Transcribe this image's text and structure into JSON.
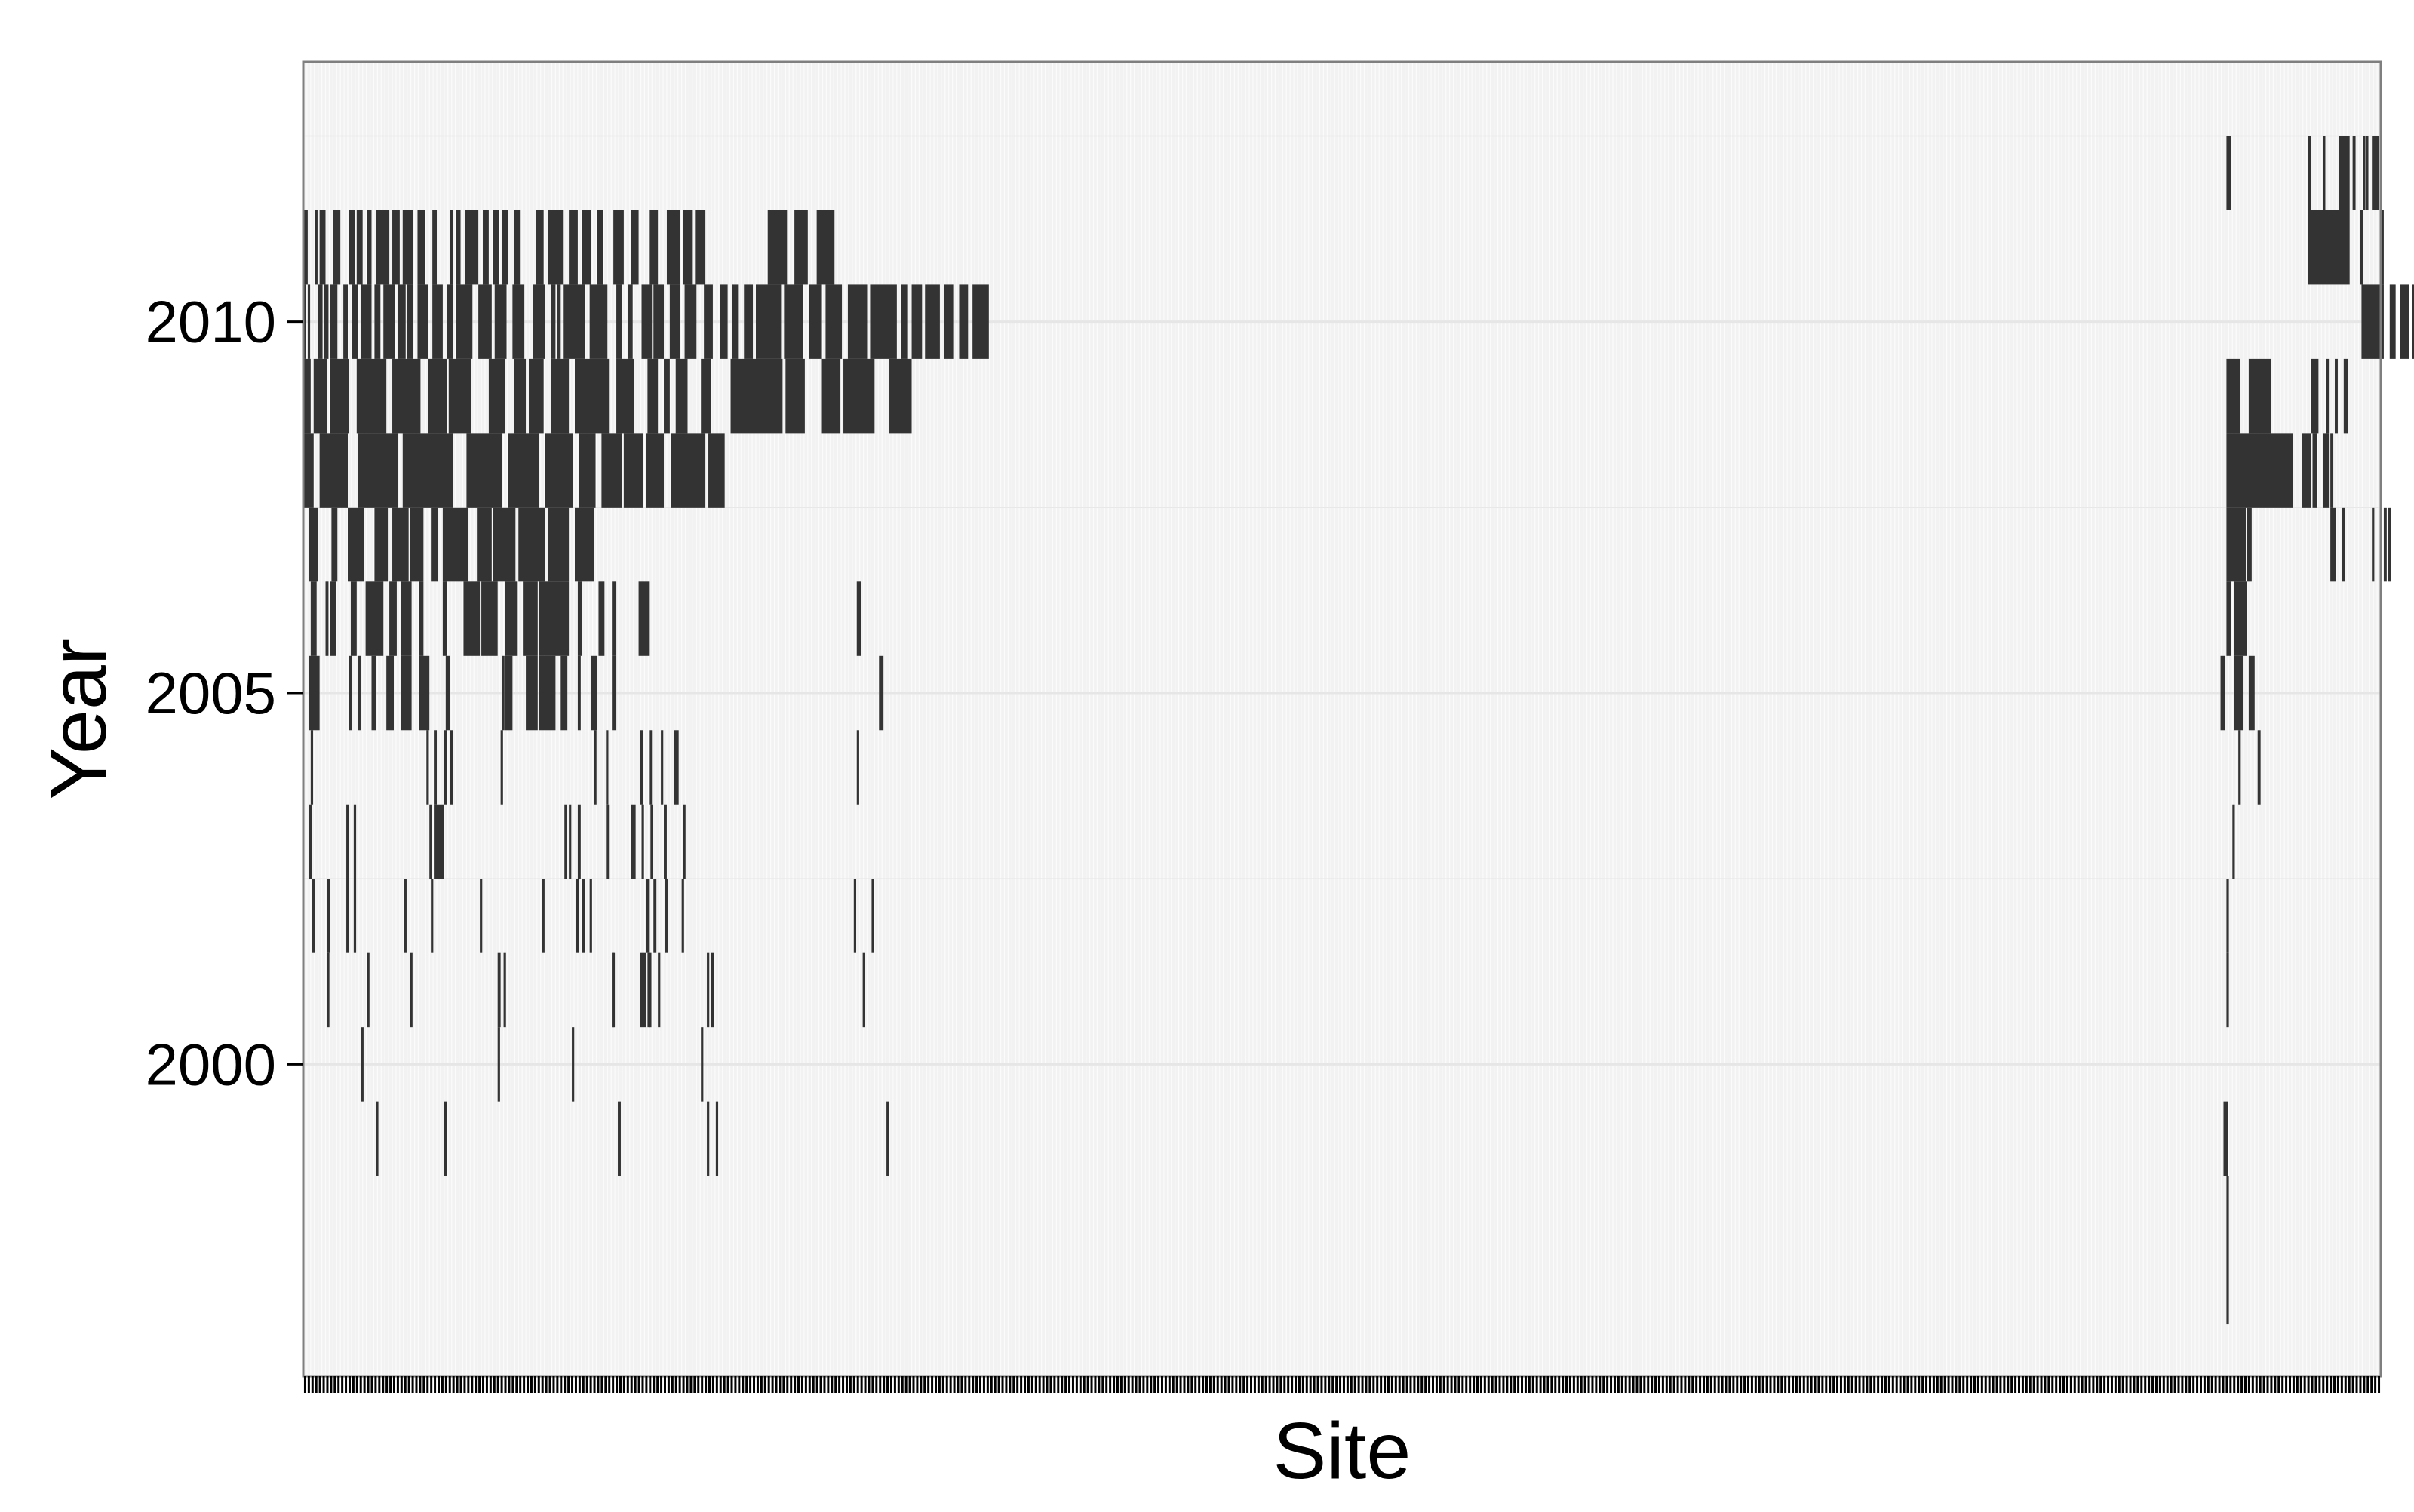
{
  "colors": {
    "panel_background": "#f2f2f2",
    "panel_border": "#7f7f7f",
    "grid": "#e6e6e6",
    "site_grid": "#ffffff",
    "bar": "#333333",
    "axis_text": "#000000",
    "site_axis_ticks": "#000000"
  },
  "chart_data": {
    "type": "heatmap",
    "title": "",
    "xlabel": "Site",
    "ylabel": "Year",
    "ylim": [
      1995.8,
      2013.5
    ],
    "y_ticks": [
      2000,
      2005,
      2010
    ],
    "grid": true,
    "legend": "none",
    "site_count": 560,
    "site_tick_labels_shown": false,
    "series": [
      {
        "year_from": 1997,
        "year_to": 1997,
        "sites": [
          [
            1296,
            1296
          ]
        ]
      },
      {
        "year_from": 1998,
        "year_to": 1998,
        "sites": [
          [
            1296,
            1296
          ]
        ]
      },
      {
        "year_from": 1999,
        "year_to": 1999,
        "sites": [
          [
            49,
            49
          ],
          [
            95,
            95
          ],
          [
            212,
            213
          ],
          [
            272,
            272
          ],
          [
            278,
            278
          ],
          [
            393,
            393
          ],
          [
            1294,
            1296
          ]
        ]
      },
      {
        "year_from": 2000,
        "year_to": 2000,
        "sites": [
          [
            39,
            39
          ],
          [
            131,
            131
          ],
          [
            181,
            181
          ],
          [
            268,
            268
          ]
        ]
      },
      {
        "year_from": 2001,
        "year_to": 2001,
        "sites": [
          [
            16,
            16
          ],
          [
            43,
            43
          ],
          [
            72,
            72
          ],
          [
            131,
            132
          ],
          [
            135,
            135
          ],
          [
            208,
            208
          ],
          [
            208,
            209
          ],
          [
            272,
            272
          ],
          [
            229,
            230
          ],
          [
            232,
            232
          ],
          [
            227,
            228
          ],
          [
            233,
            233
          ],
          [
            239,
            239
          ],
          [
            275,
            276
          ],
          [
            377,
            377
          ],
          [
            1296,
            1296
          ]
        ]
      },
      {
        "year_from": 2002,
        "year_to": 2002,
        "sites": [
          [
            6,
            6
          ],
          [
            16,
            17
          ],
          [
            29,
            29
          ],
          [
            34,
            34
          ],
          [
            68,
            68
          ],
          [
            86,
            86
          ],
          [
            119,
            119
          ],
          [
            161,
            161
          ],
          [
            184,
            184
          ],
          [
            188,
            189
          ],
          [
            193,
            193
          ],
          [
            231,
            232
          ],
          [
            244,
            244
          ],
          [
            236,
            237
          ],
          [
            255,
            255
          ],
          [
            383,
            383
          ],
          [
            371,
            371
          ],
          [
            1296,
            1296
          ]
        ]
      },
      {
        "year_from": 2003,
        "year_to": 2003,
        "sites": [
          [
            4,
            4
          ],
          [
            29,
            29
          ],
          [
            34,
            34
          ],
          [
            85,
            85
          ],
          [
            88,
            94
          ],
          [
            176,
            176
          ],
          [
            179,
            179
          ],
          [
            185,
            186
          ],
          [
            204,
            205
          ],
          [
            221,
            223
          ],
          [
            228,
            228
          ],
          [
            234,
            234
          ],
          [
            243,
            244
          ],
          [
            256,
            256
          ],
          [
            1300,
            1300
          ]
        ]
      },
      {
        "year_from": 2004,
        "year_to": 2004,
        "sites": [
          [
            5,
            5
          ],
          [
            83,
            83
          ],
          [
            88,
            89
          ],
          [
            95,
            96
          ],
          [
            99,
            100
          ],
          [
            133,
            133
          ],
          [
            196,
            196
          ],
          [
            204,
            204
          ],
          [
            227,
            228
          ],
          [
            233,
            234
          ],
          [
            241,
            241
          ],
          [
            250,
            252
          ],
          [
            1304,
            1304
          ],
          [
            373,
            373
          ],
          [
            1317,
            1318
          ]
        ]
      },
      {
        "year_from": 2005,
        "year_to": 2005,
        "sites": [
          [
            4,
            10
          ],
          [
            31,
            32
          ],
          [
            37,
            37
          ],
          [
            46,
            48
          ],
          [
            56,
            60
          ],
          [
            66,
            72
          ],
          [
            78,
            84
          ],
          [
            96,
            98
          ],
          [
            134,
            134
          ],
          [
            136,
            140
          ],
          [
            150,
            157
          ],
          [
            159,
            169
          ],
          [
            173,
            177
          ],
          [
            185,
            186
          ],
          [
            194,
            197
          ],
          [
            208,
            210
          ],
          [
            1301,
            1306
          ],
          [
            1311,
            1314
          ],
          [
            388,
            390
          ],
          [
            1292,
            1294
          ]
        ]
      },
      {
        "year_from": 2006,
        "year_to": 2006,
        "sites": [
          [
            5,
            8
          ],
          [
            15,
            16
          ],
          [
            18,
            21
          ],
          [
            32,
            35
          ],
          [
            42,
            53
          ],
          [
            58,
            62
          ],
          [
            66,
            72
          ],
          [
            78,
            80
          ],
          [
            94,
            96
          ],
          [
            108,
            118
          ],
          [
            120,
            130
          ],
          [
            136,
            143
          ],
          [
            148,
            157
          ],
          [
            159,
            178
          ],
          [
            185,
            187
          ],
          [
            199,
            202
          ],
          [
            208,
            210
          ],
          [
            226,
            232
          ],
          [
            1296,
            1298
          ],
          [
            373,
            375
          ],
          [
            1301,
            1309
          ]
        ]
      },
      {
        "year_from": 2007,
        "year_to": 2007,
        "sites": [
          [
            4,
            9
          ],
          [
            19,
            22
          ],
          [
            30,
            40
          ],
          [
            48,
            56
          ],
          [
            60,
            70
          ],
          [
            72,
            80
          ],
          [
            86,
            90
          ],
          [
            94,
            110
          ],
          [
            117,
            126
          ],
          [
            128,
            142
          ],
          [
            145,
            162
          ],
          [
            165,
            178
          ],
          [
            183,
            195
          ],
          [
            1296,
            1308
          ],
          [
            1310,
            1312
          ],
          [
            1366,
            1369
          ],
          [
            1374,
            1374
          ],
          [
            1394,
            1394
          ],
          [
            1402,
            1403
          ],
          [
            1405,
            1406
          ]
        ]
      },
      {
        "year_from": 2008,
        "year_to": 2008,
        "sites": [
          [
            0,
            6
          ],
          [
            11,
            29
          ],
          [
            37,
            63
          ],
          [
            67,
            100
          ],
          [
            110,
            133
          ],
          [
            138,
            158
          ],
          [
            163,
            181
          ],
          [
            186,
            196
          ],
          [
            201,
            214
          ],
          [
            216,
            228
          ],
          [
            231,
            242
          ],
          [
            248,
            270
          ],
          [
            273,
            283
          ],
          [
            1296,
            1340
          ],
          [
            1347,
            1352
          ],
          [
            1354,
            1356
          ],
          [
            1361,
            1364
          ],
          [
            1366,
            1367
          ]
        ]
      },
      {
        "year_from": 2009,
        "year_to": 2009,
        "sites": [
          [
            0,
            4
          ],
          [
            7,
            15
          ],
          [
            18,
            30
          ],
          [
            36,
            55
          ],
          [
            60,
            78
          ],
          [
            84,
            96
          ],
          [
            98,
            112
          ],
          [
            125,
            135
          ],
          [
            142,
            149
          ],
          [
            152,
            161
          ],
          [
            167,
            178
          ],
          [
            183,
            205
          ],
          [
            211,
            222
          ],
          [
            232,
            238
          ],
          [
            243,
            246
          ],
          [
            251,
            258
          ],
          [
            268,
            274
          ],
          [
            288,
            322
          ],
          [
            325,
            337
          ],
          [
            349,
            361
          ],
          [
            364,
            384
          ],
          [
            395,
            409
          ],
          [
            1296,
            1304
          ],
          [
            1311,
            1325
          ],
          [
            1353,
            1357
          ],
          [
            1363,
            1364
          ],
          [
            1369,
            1370
          ],
          [
            1375,
            1377
          ]
        ]
      },
      {
        "year_from": 2010,
        "year_to": 2010,
        "sites": [
          [
            0,
            0
          ],
          [
            3,
            3
          ],
          [
            10,
            12
          ],
          [
            14,
            16
          ],
          [
            18,
            22
          ],
          [
            27,
            29
          ],
          [
            33,
            36
          ],
          [
            39,
            45
          ],
          [
            48,
            51
          ],
          [
            54,
            61
          ],
          [
            64,
            68
          ],
          [
            70,
            73
          ],
          [
            77,
            83
          ],
          [
            87,
            93
          ],
          [
            97,
            100
          ],
          [
            103,
            113
          ],
          [
            118,
            126
          ],
          [
            129,
            136
          ],
          [
            141,
            148
          ],
          [
            155,
            162
          ],
          [
            167,
            169
          ],
          [
            171,
            172
          ],
          [
            175,
            189
          ],
          [
            193,
            204
          ],
          [
            211,
            214
          ],
          [
            219,
            221
          ],
          [
            228,
            234
          ],
          [
            236,
            242
          ],
          [
            247,
            253
          ],
          [
            257,
            264
          ],
          [
            270,
            275
          ],
          [
            281,
            285
          ],
          [
            289,
            292
          ],
          [
            297,
            302
          ],
          [
            305,
            321
          ],
          [
            324,
            336
          ],
          [
            341,
            348
          ],
          [
            352,
            362
          ],
          [
            367,
            379
          ],
          [
            382,
            399
          ],
          [
            403,
            406
          ],
          [
            410,
            416
          ],
          [
            419,
            428
          ],
          [
            432,
            437
          ],
          [
            442,
            447
          ],
          [
            451,
            461
          ],
          [
            1387,
            1401
          ],
          [
            1406,
            1409
          ],
          [
            1413,
            1418
          ],
          [
            1421,
            1428
          ],
          [
            1432,
            1437
          ],
          [
            1447,
            1460
          ]
        ]
      },
      {
        "year_from": 2011,
        "year_to": 2011,
        "sites": [
          [
            0,
            2
          ],
          [
            8,
            8
          ],
          [
            11,
            14
          ],
          [
            20,
            24
          ],
          [
            31,
            34
          ],
          [
            36,
            39
          ],
          [
            43,
            45
          ],
          [
            49,
            57
          ],
          [
            60,
            64
          ],
          [
            67,
            73
          ],
          [
            77,
            81
          ],
          [
            87,
            89
          ],
          [
            99,
            100
          ],
          [
            103,
            105
          ],
          [
            109,
            117
          ],
          [
            121,
            124
          ],
          [
            128,
            131
          ],
          [
            134,
            137
          ],
          [
            142,
            145
          ],
          [
            157,
            161
          ],
          [
            165,
            174
          ],
          [
            179,
            184
          ],
          [
            188,
            193
          ],
          [
            198,
            201
          ],
          [
            209,
            215
          ],
          [
            221,
            225
          ],
          [
            233,
            238
          ],
          [
            245,
            253
          ],
          [
            256,
            261
          ],
          [
            264,
            270
          ],
          [
            313,
            325
          ],
          [
            331,
            339
          ],
          [
            346,
            357
          ],
          [
            1351,
            1378
          ],
          [
            1386,
            1387
          ],
          [
            1400,
            1401
          ]
        ]
      },
      {
        "year_from": 2012,
        "year_to": 2012,
        "sites": [
          [
            1296,
            1298
          ],
          [
            1351,
            1352
          ],
          [
            1361,
            1361
          ],
          [
            1372,
            1378
          ],
          [
            1381,
            1382
          ],
          [
            1388,
            1388
          ],
          [
            1390,
            1390
          ],
          [
            1394,
            1398
          ]
        ]
      }
    ]
  }
}
